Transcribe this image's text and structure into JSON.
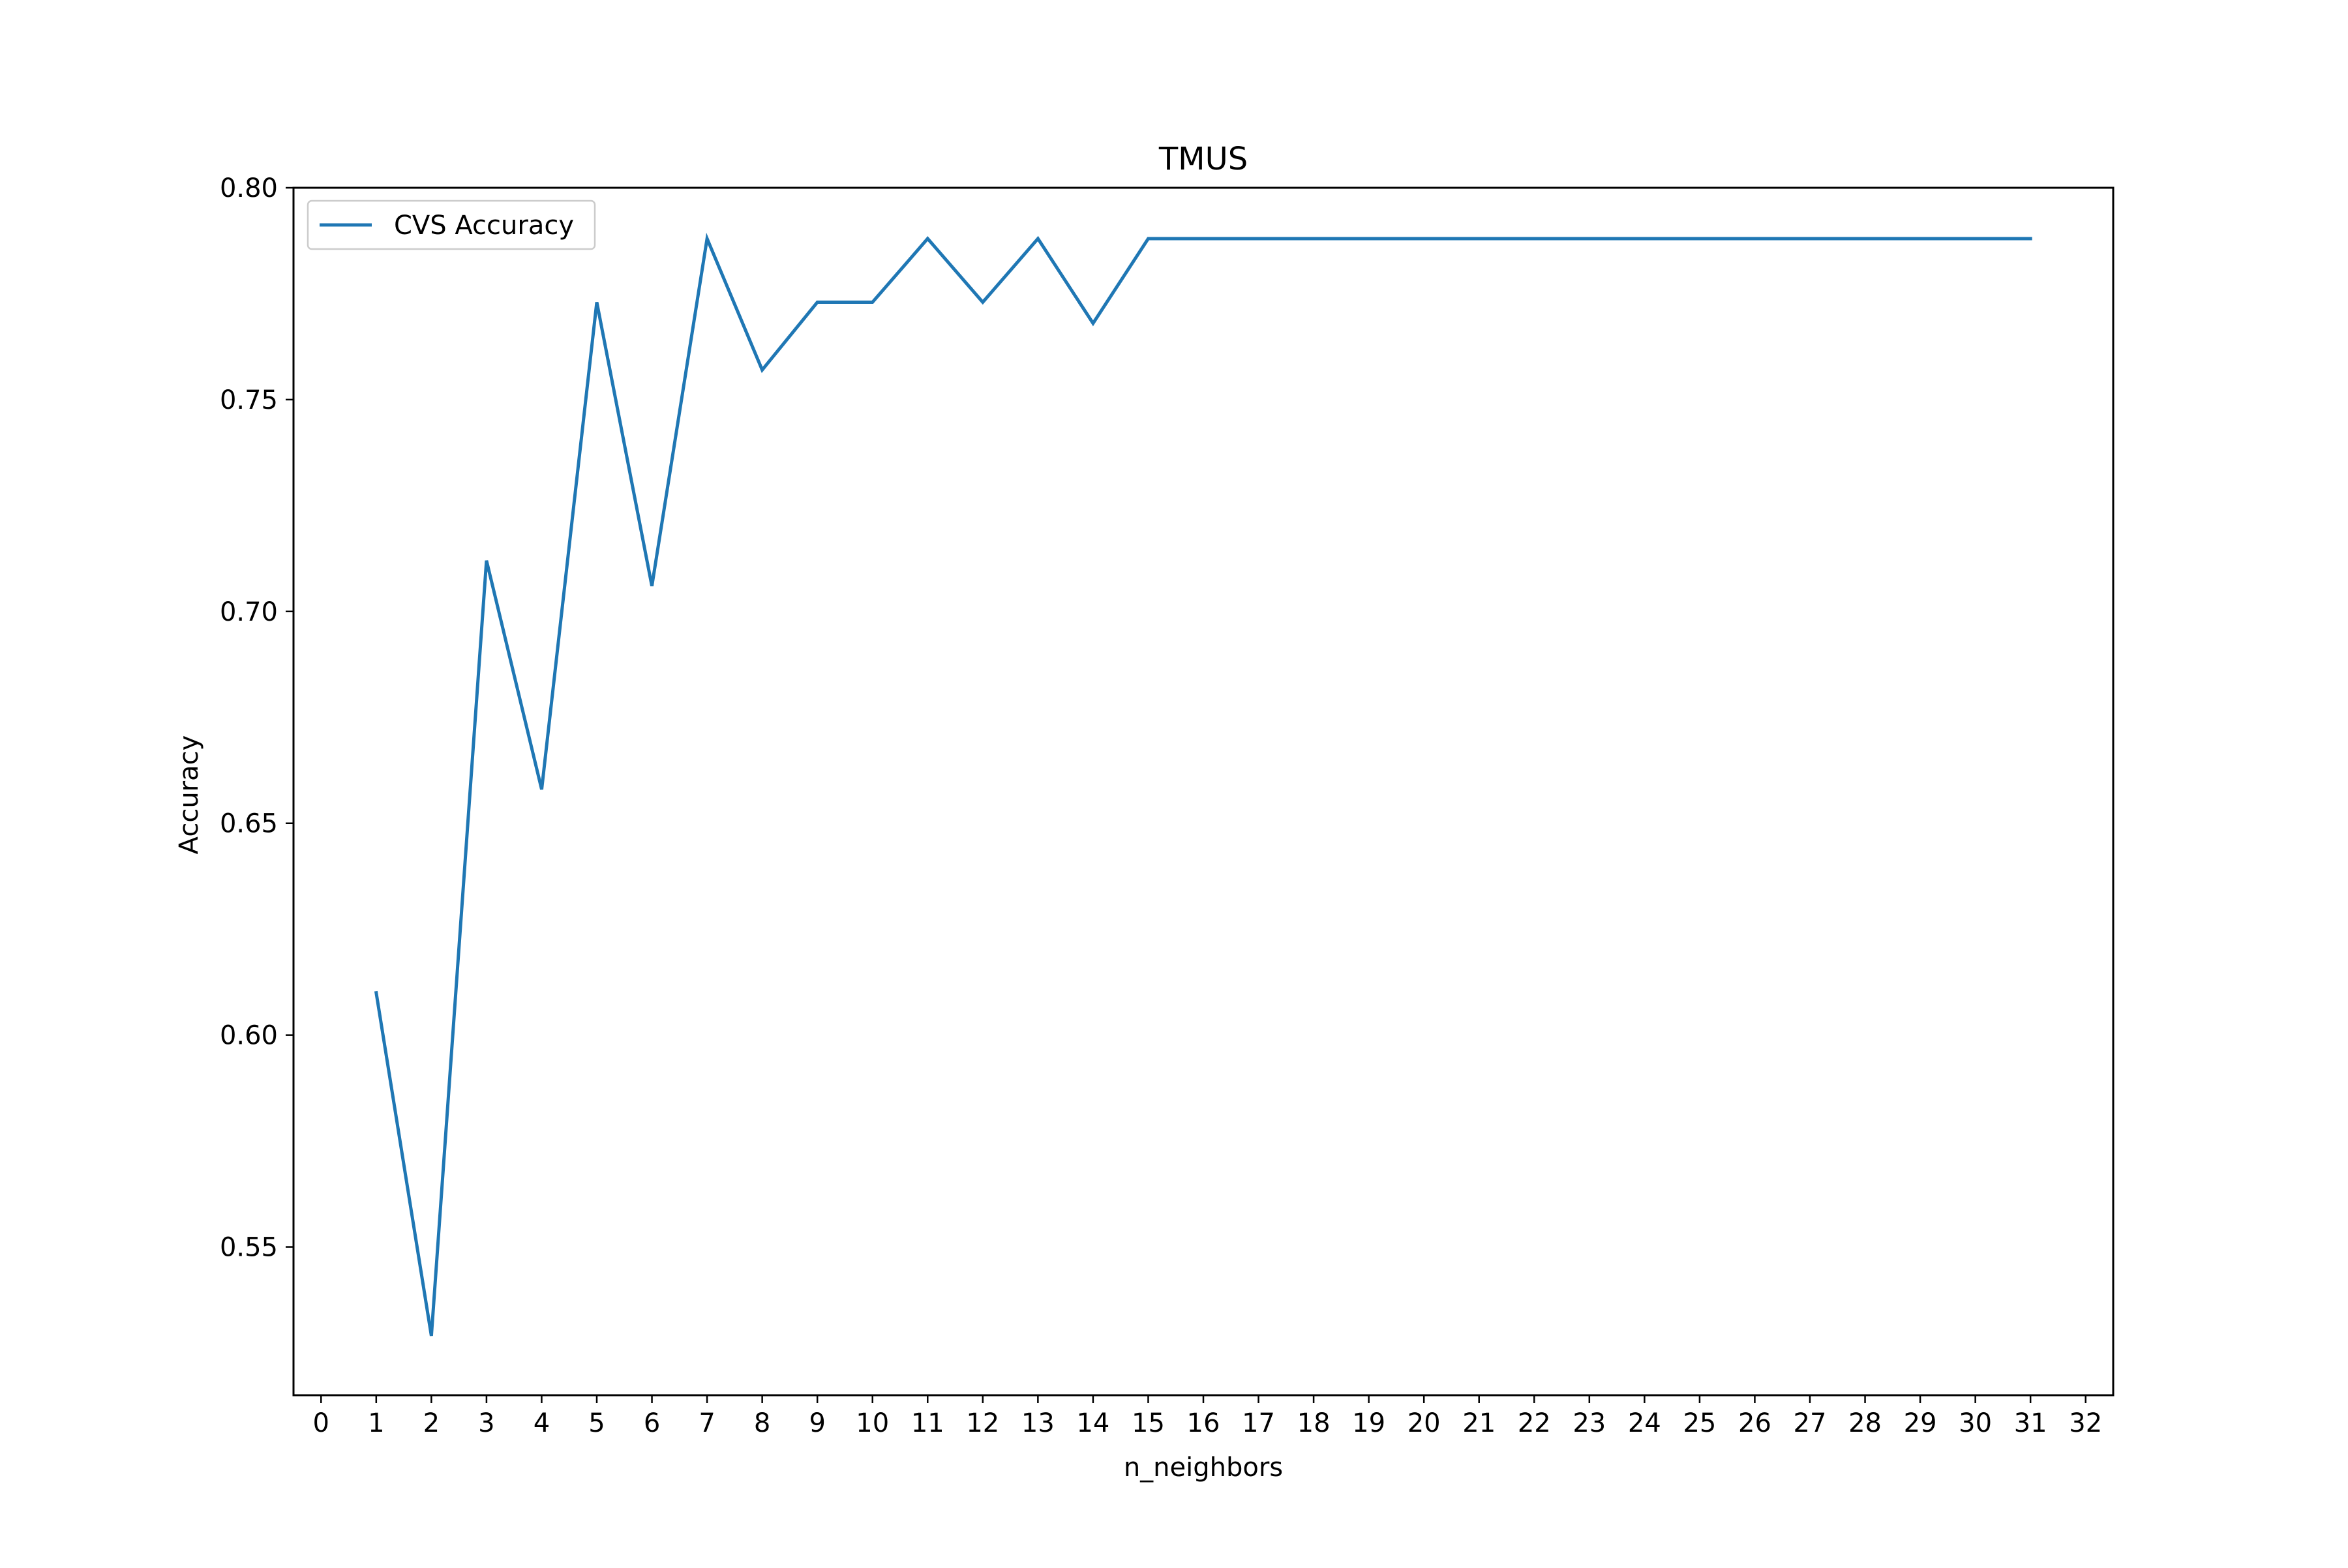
{
  "chart_data": {
    "type": "line",
    "title": "TMUS",
    "xlabel": "n_neighbors",
    "ylabel": "Accuracy",
    "xlim": [
      -0.5,
      32.5
    ],
    "ylim": [
      0.515,
      0.8
    ],
    "xticks": [
      0,
      1,
      2,
      3,
      4,
      5,
      6,
      7,
      8,
      9,
      10,
      11,
      12,
      13,
      14,
      15,
      16,
      17,
      18,
      19,
      20,
      21,
      22,
      23,
      24,
      25,
      26,
      27,
      28,
      29,
      30,
      31,
      32
    ],
    "yticks": [
      "0.55",
      "0.60",
      "0.65",
      "0.70",
      "0.75",
      "0.80"
    ],
    "grid": false,
    "legend": {
      "position": "top-left",
      "show": true
    },
    "series": [
      {
        "name": "CVS Accuracy",
        "color": "#1f77b4",
        "x": [
          1,
          2,
          3,
          4,
          5,
          6,
          7,
          8,
          9,
          10,
          11,
          12,
          13,
          14,
          15,
          16,
          17,
          18,
          19,
          20,
          21,
          22,
          23,
          24,
          25,
          26,
          27,
          28,
          29,
          30,
          31
        ],
        "y": [
          0.61,
          0.529,
          0.712,
          0.658,
          0.773,
          0.706,
          0.788,
          0.757,
          0.773,
          0.773,
          0.788,
          0.773,
          0.788,
          0.768,
          0.788,
          0.788,
          0.788,
          0.788,
          0.788,
          0.788,
          0.788,
          0.788,
          0.788,
          0.788,
          0.788,
          0.788,
          0.788,
          0.788,
          0.788,
          0.788,
          0.788
        ]
      }
    ]
  }
}
